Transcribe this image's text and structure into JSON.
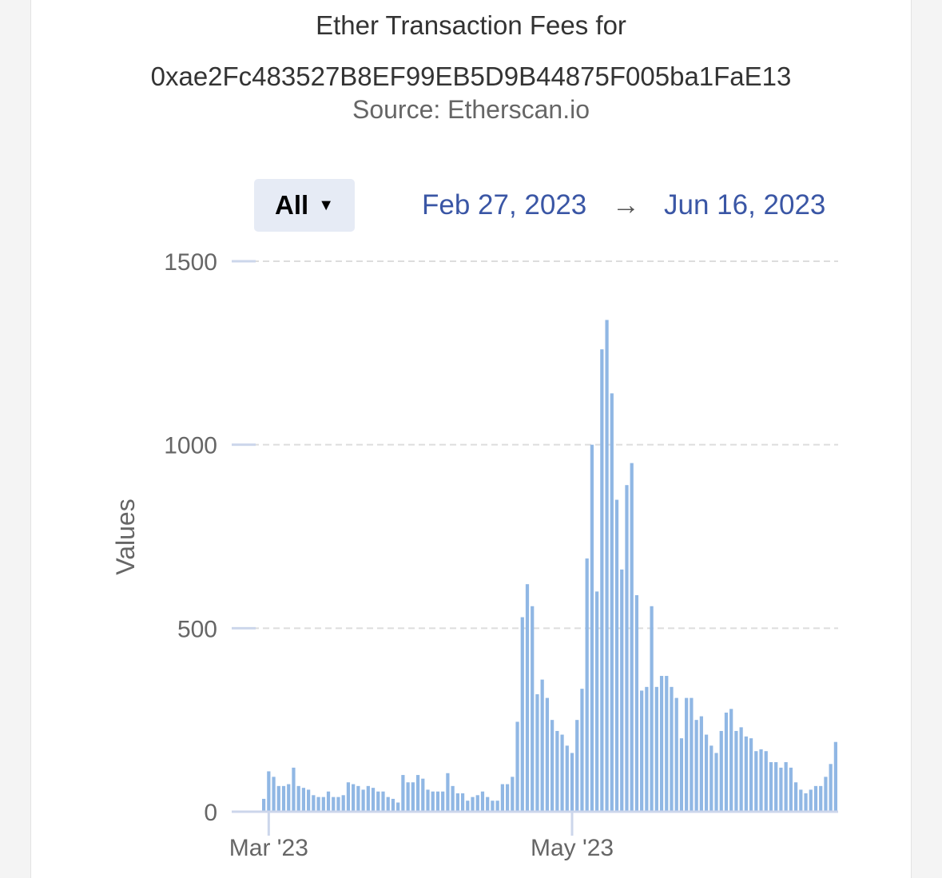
{
  "chart_data": {
    "type": "bar",
    "title_line1": "Ether Transaction Fees for",
    "title_line2": "0xae2Fc483527B8EF99EB5D9B44875F005ba1FaE13",
    "subtitle": "Source: Etherscan.io",
    "ylabel": "Values",
    "xlabel": "",
    "ylim": [
      0,
      1500
    ],
    "y_ticks": [
      "0",
      "500",
      "1000",
      "1500"
    ],
    "x_tick_labels": [
      {
        "label": "Mar '23",
        "date": "2023-03-01"
      },
      {
        "label": "May '23",
        "date": "2023-05-01"
      }
    ],
    "grid": true,
    "x_start": "2023-02-28",
    "x_end": "2023-06-16",
    "bar_color": "#90b7e4",
    "values": [
      35,
      110,
      95,
      70,
      70,
      75,
      120,
      70,
      65,
      60,
      45,
      40,
      40,
      55,
      40,
      40,
      45,
      80,
      75,
      70,
      60,
      70,
      65,
      55,
      55,
      40,
      35,
      25,
      100,
      80,
      80,
      100,
      90,
      60,
      55,
      55,
      55,
      105,
      70,
      50,
      50,
      30,
      40,
      45,
      55,
      40,
      30,
      30,
      75,
      75,
      95,
      245,
      530,
      620,
      560,
      320,
      360,
      310,
      250,
      220,
      210,
      180,
      160,
      250,
      335,
      690,
      1000,
      600,
      1260,
      1340,
      1140,
      850,
      660,
      890,
      950,
      590,
      330,
      340,
      560,
      340,
      370,
      370,
      340,
      310,
      200,
      310,
      310,
      250,
      260,
      210,
      180,
      160,
      220,
      270,
      280,
      220,
      230,
      205,
      200,
      165,
      170,
      165,
      135,
      135,
      120,
      135,
      120,
      80,
      60,
      50,
      60,
      70,
      70,
      95,
      130,
      190
    ]
  },
  "toolbar": {
    "range_label": "All",
    "range_caret": "▼",
    "date_from": "Feb 27, 2023",
    "date_arrow": "→",
    "date_to": "Jun 16, 2023"
  },
  "colors": {
    "title": "#333333",
    "subtitle": "#666666",
    "date": "#3a56a5",
    "button_bg": "#e6ebf5",
    "grid": "#dddddd",
    "tick_mark": "#ccd6eb",
    "axis_line": "#ccd6eb"
  }
}
